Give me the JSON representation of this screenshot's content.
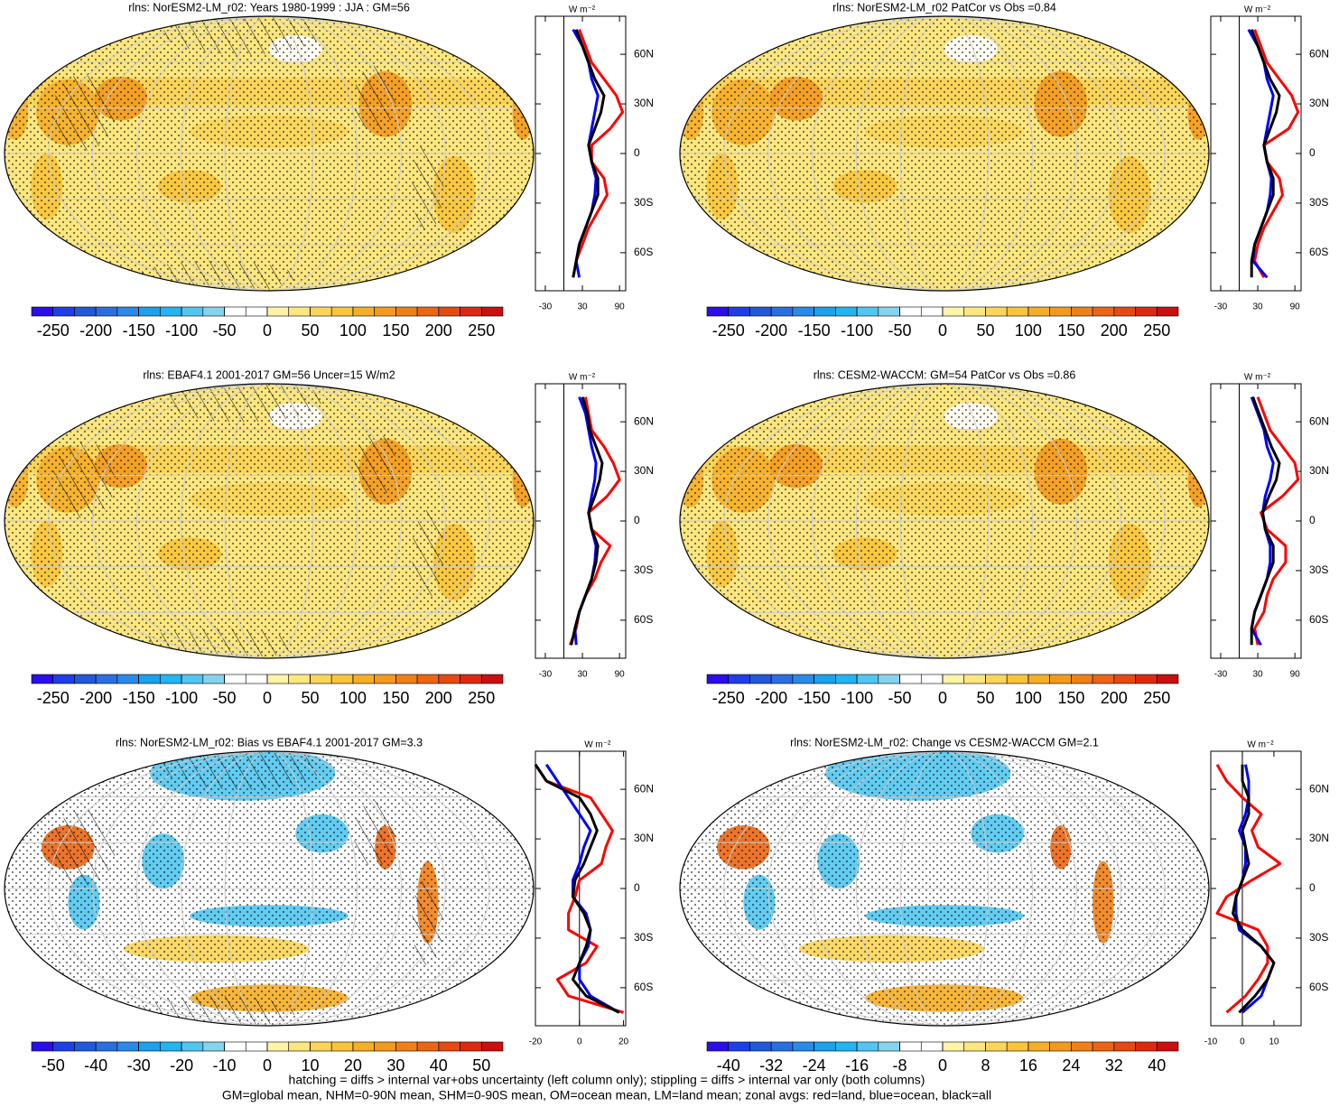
{
  "palette": [
    "#2b0fe6",
    "#1f3fe6",
    "#2259d9",
    "#2a6fe0",
    "#2a8ae6",
    "#1ea0ea",
    "#24b4ef",
    "#52c6f0",
    "#86d3ee",
    "#ffffff",
    "#ffffff",
    "#fff3a8",
    "#fbe680",
    "#fad55a",
    "#f8c43c",
    "#f5ae28",
    "#f39a1e",
    "#ef8018",
    "#ea6614",
    "#e44a12",
    "#dc2a10",
    "#c81010"
  ],
  "footer": [
    "hatching = diffs > internal var+obs uncertainty (left column only); stippling = diffs > internal var only (both columns)",
    "GM=global mean, NHM=0-90N mean, SHM=0-90S mean, OM=ocean mean, LM=land mean; zonal avgs: red=land, blue=ocean, black=all"
  ],
  "chart_data": [
    {
      "type": "map",
      "title": "rlns: NorESM2-LM_r02: Years 1980-1999 : JJA : GM=56",
      "colorbar": {
        "lim": [
          -275,
          275
        ],
        "ticks": [
          -250,
          -200,
          -150,
          -100,
          -50,
          0,
          50,
          100,
          150,
          200,
          250
        ]
      },
      "zonal": {
        "type": "line",
        "xlabel": "W m⁻²",
        "xlim": [
          -46,
          100
        ],
        "xticks": [
          -30,
          30,
          90
        ],
        "ylim": [
          -83,
          83
        ],
        "yticks": [
          {
            "value": 60,
            "label": "60N"
          },
          {
            "value": 30,
            "label": "30N"
          },
          0,
          {
            "value": -30,
            "label": "30S"
          },
          {
            "value": -60,
            "label": "60S"
          }
        ],
        "y": [
          -75,
          -65,
          -55,
          -45,
          -35,
          -25,
          -15,
          -5,
          5,
          15,
          25,
          35,
          45,
          55,
          65,
          75
        ],
        "series": [
          {
            "color": "#ff0000",
            "values": [
              15,
              20,
              30,
              40,
              55,
              70,
              65,
              45,
              45,
              75,
              95,
              85,
              65,
              45,
              35,
              25
            ]
          },
          {
            "color": "#0000ff",
            "values": [
              25,
              20,
              25,
              35,
              45,
              50,
              52,
              45,
              40,
              45,
              50,
              55,
              45,
              40,
              30,
              15
            ]
          },
          {
            "color": "#000000",
            "values": [
              15,
              20,
              25,
              35,
              45,
              55,
              55,
              45,
              40,
              50,
              60,
              65,
              50,
              40,
              30,
              20
            ]
          }
        ]
      }
    },
    {
      "type": "map",
      "title": "rlns: NorESM2-LM_r02 PatCor vs Obs =0.84",
      "colorbar": {
        "lim": [
          -275,
          275
        ],
        "ticks": [
          -250,
          -200,
          -150,
          -100,
          -50,
          0,
          50,
          100,
          150,
          200,
          250
        ]
      },
      "zonal": {
        "type": "line",
        "xlabel": "W m⁻²",
        "xlim": [
          -46,
          100
        ],
        "xticks": [
          -30,
          30,
          90
        ],
        "ylim": [
          -83,
          83
        ],
        "yticks": [
          {
            "value": 60,
            "label": "60N"
          },
          {
            "value": 30,
            "label": "30N"
          },
          0,
          {
            "value": -30,
            "label": "30S"
          },
          {
            "value": -60,
            "label": "60S"
          }
        ],
        "y": [
          -75,
          -65,
          -55,
          -45,
          -35,
          -25,
          -15,
          -5,
          5,
          15,
          25,
          35,
          45,
          55,
          65,
          75
        ],
        "series": [
          {
            "color": "#ff0000",
            "values": [
              40,
              25,
              30,
              40,
              55,
              70,
              65,
              45,
              40,
              80,
              95,
              85,
              65,
              45,
              35,
              25
            ]
          },
          {
            "color": "#0000ff",
            "values": [
              45,
              22,
              25,
              35,
              45,
              50,
              52,
              45,
              40,
              45,
              50,
              55,
              45,
              40,
              30,
              15
            ]
          },
          {
            "color": "#000000",
            "values": [
              20,
              20,
              25,
              35,
              45,
              55,
              55,
              45,
              40,
              50,
              60,
              65,
              50,
              40,
              30,
              20
            ]
          }
        ]
      }
    },
    {
      "type": "map",
      "title": "rlns: EBAF4.1 2001-2017 GM=56 Uncer=15 W/m2",
      "colorbar": {
        "lim": [
          -275,
          275
        ],
        "ticks": [
          -250,
          -200,
          -150,
          -100,
          -50,
          0,
          50,
          100,
          150,
          200,
          250
        ]
      },
      "zonal": {
        "type": "line",
        "xlabel": "W m⁻²",
        "xlim": [
          -46,
          100
        ],
        "xticks": [
          -30,
          30,
          90
        ],
        "ylim": [
          -83,
          83
        ],
        "yticks": [
          {
            "value": 60,
            "label": "60N"
          },
          {
            "value": 30,
            "label": "30N"
          },
          0,
          {
            "value": -30,
            "label": "30S"
          },
          {
            "value": -60,
            "label": "60S"
          }
        ],
        "y": [
          -75,
          -65,
          -55,
          -45,
          -35,
          -25,
          -15,
          -5,
          5,
          15,
          25,
          35,
          45,
          55,
          65,
          75
        ],
        "series": [
          {
            "color": "#ff0000",
            "values": [
              10,
              20,
              25,
              35,
              50,
              60,
              75,
              45,
              40,
              70,
              90,
              80,
              65,
              45,
              40,
              35
            ]
          },
          {
            "color": "#0000ff",
            "values": [
              20,
              18,
              25,
              35,
              45,
              50,
              52,
              45,
              40,
              45,
              50,
              52,
              45,
              40,
              35,
              25
            ]
          },
          {
            "color": "#000000",
            "values": [
              12,
              18,
              25,
              35,
              45,
              52,
              55,
              45,
              40,
              50,
              58,
              62,
              52,
              42,
              38,
              30
            ]
          }
        ]
      }
    },
    {
      "type": "map",
      "title": "rlns: CESM2-WACCM: GM=54 PatCor vs Obs =0.86",
      "colorbar": {
        "lim": [
          -275,
          275
        ],
        "ticks": [
          -250,
          -200,
          -150,
          -100,
          -50,
          0,
          50,
          100,
          150,
          200,
          250
        ]
      },
      "zonal": {
        "type": "line",
        "xlabel": "W m⁻²",
        "xlim": [
          -46,
          100
        ],
        "xticks": [
          -30,
          30,
          90
        ],
        "ylim": [
          -83,
          83
        ],
        "yticks": [
          {
            "value": 60,
            "label": "60N"
          },
          {
            "value": 30,
            "label": "30N"
          },
          0,
          {
            "value": -30,
            "label": "30S"
          },
          {
            "value": -60,
            "label": "60S"
          }
        ],
        "y": [
          -75,
          -65,
          -55,
          -45,
          -35,
          -25,
          -15,
          -5,
          5,
          15,
          25,
          35,
          45,
          55,
          65,
          75
        ],
        "series": [
          {
            "color": "#ff0000",
            "values": [
              30,
              25,
              40,
              45,
              55,
              75,
              75,
              45,
              35,
              70,
              95,
              90,
              70,
              50,
              40,
              30
            ]
          },
          {
            "color": "#0000ff",
            "values": [
              35,
              20,
              25,
              35,
              45,
              50,
              50,
              42,
              38,
              42,
              50,
              55,
              45,
              40,
              30,
              20
            ]
          },
          {
            "color": "#000000",
            "values": [
              20,
              20,
              25,
              35,
              45,
              55,
              55,
              42,
              38,
              48,
              60,
              65,
              52,
              42,
              32,
              22
            ]
          }
        ]
      }
    },
    {
      "type": "map",
      "title": "rlns: NorESM2-LM_r02: Bias vs EBAF4.1 2001-2017 GM=3.3",
      "colorbar": {
        "lim": [
          -55,
          55
        ],
        "ticks": [
          -50,
          -40,
          -30,
          -20,
          -10,
          0,
          10,
          20,
          30,
          40,
          50
        ]
      },
      "zonal": {
        "type": "line",
        "xlabel": "W m⁻²",
        "xlim": [
          -20,
          21
        ],
        "xticks": [
          -20,
          0,
          20
        ],
        "ylim": [
          -83,
          83
        ],
        "yticks": [
          {
            "value": 60,
            "label": "60N"
          },
          {
            "value": 30,
            "label": "30N"
          },
          0,
          {
            "value": -30,
            "label": "30S"
          },
          {
            "value": -60,
            "label": "60S"
          }
        ],
        "y": [
          -75,
          -65,
          -55,
          -45,
          -35,
          -25,
          -15,
          -5,
          5,
          15,
          25,
          35,
          45,
          55,
          65,
          75
        ],
        "series": [
          {
            "color": "#ff0000",
            "values": [
              20,
              -5,
              -10,
              3,
              8,
              -5,
              -5,
              -2,
              0,
              10,
              12,
              15,
              10,
              5,
              -15,
              -20
            ]
          },
          {
            "color": "#0000ff",
            "values": [
              18,
              5,
              0,
              0,
              4,
              5,
              3,
              -3,
              -3,
              0,
              2,
              5,
              0,
              -5,
              -10,
              -15
            ]
          },
          {
            "color": "#000000",
            "values": [
              18,
              3,
              -3,
              0,
              3,
              5,
              2,
              -3,
              -2,
              2,
              5,
              8,
              5,
              0,
              -15,
              -20
            ]
          }
        ]
      }
    },
    {
      "type": "map",
      "title": "rlns: NorESM2-LM_r02: Change vs CESM2-WACCM GM=2.1",
      "colorbar": {
        "lim": [
          -44,
          44
        ],
        "ticks": [
          -40,
          -32,
          -24,
          -16,
          -8,
          0,
          8,
          16,
          24,
          32,
          40
        ]
      },
      "zonal": {
        "type": "line",
        "xlabel": "W m⁻²",
        "xlim": [
          -10,
          18.6
        ],
        "xticks": [
          -10,
          0,
          10
        ],
        "ylim": [
          -83,
          83
        ],
        "yticks": [
          {
            "value": 60,
            "label": "60N"
          },
          {
            "value": 30,
            "label": "30N"
          },
          0,
          {
            "value": -30,
            "label": "30S"
          },
          {
            "value": -60,
            "label": "60S"
          }
        ],
        "y": [
          -75,
          -65,
          -55,
          -45,
          -35,
          -25,
          -15,
          -5,
          5,
          15,
          25,
          35,
          45,
          55,
          65,
          75
        ],
        "series": [
          {
            "color": "#ff0000",
            "values": [
              -5,
              1,
              5,
              8,
              8,
              5,
              -8,
              -5,
              3,
              12,
              5,
              3,
              6,
              0,
              -5,
              -8
            ]
          },
          {
            "color": "#0000ff",
            "values": [
              0,
              6,
              8,
              10,
              6,
              -1,
              -2,
              -2,
              0,
              1,
              1,
              -1,
              1,
              2,
              2,
              1
            ]
          },
          {
            "color": "#000000",
            "values": [
              -1,
              4,
              8,
              10,
              6,
              0,
              -3,
              -2,
              0,
              2,
              1,
              0,
              2,
              2,
              0,
              0
            ]
          }
        ]
      }
    }
  ]
}
